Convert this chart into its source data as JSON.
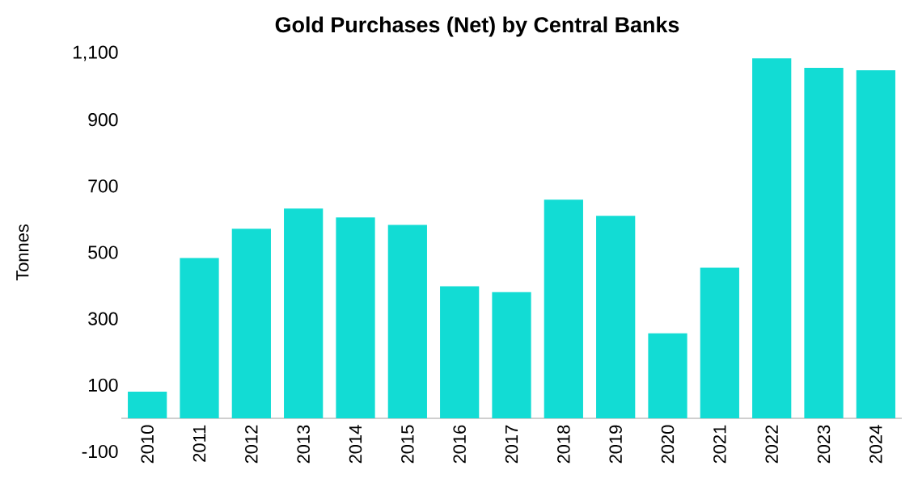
{
  "chart_data": {
    "type": "bar",
    "title": "Gold Purchases (Net) by Central Banks",
    "ylabel": "Tonnes",
    "categories": [
      "2010",
      "2011",
      "2012",
      "2013",
      "2014",
      "2015",
      "2016",
      "2017",
      "2018",
      "2019",
      "2020",
      "2021",
      "2022",
      "2023",
      "2024"
    ],
    "values": [
      80,
      483,
      571,
      632,
      605,
      583,
      398,
      380,
      659,
      610,
      256,
      454,
      1085,
      1056,
      1049
    ],
    "color": "#12dcd4",
    "ylim": [
      -100,
      1100
    ],
    "yticks": [
      -100,
      100,
      300,
      500,
      700,
      900,
      {
        "value": 1100,
        "label": "1,100"
      }
    ]
  }
}
